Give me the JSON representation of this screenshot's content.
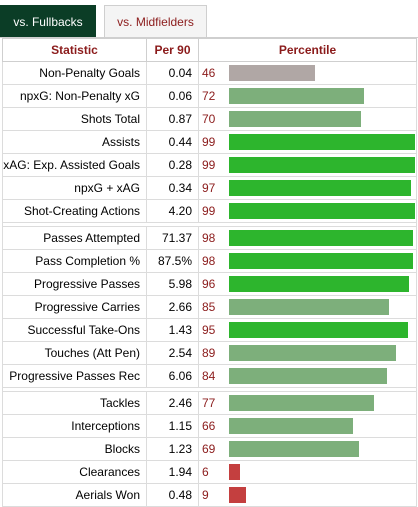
{
  "tabs": [
    {
      "label": "vs. Fullbacks",
      "active": true
    },
    {
      "label": "vs. Midfielders",
      "active": false
    }
  ],
  "table": {
    "headers": {
      "statistic": "Statistic",
      "per90": "Per 90",
      "percentile": "Percentile"
    },
    "groups": [
      [
        {
          "name": "Non-Penalty Goals",
          "per90": "0.04",
          "percentile": "46"
        },
        {
          "name": "npxG: Non-Penalty xG",
          "per90": "0.06",
          "percentile": "72"
        },
        {
          "name": "Shots Total",
          "per90": "0.87",
          "percentile": "70"
        },
        {
          "name": "Assists",
          "per90": "0.44",
          "percentile": "99"
        },
        {
          "name": "xAG: Exp. Assisted Goals",
          "per90": "0.28",
          "percentile": "99"
        },
        {
          "name": "npxG + xAG",
          "per90": "0.34",
          "percentile": "97"
        },
        {
          "name": "Shot-Creating Actions",
          "per90": "4.20",
          "percentile": "99"
        }
      ],
      [
        {
          "name": "Passes Attempted",
          "per90": "71.37",
          "percentile": "98"
        },
        {
          "name": "Pass Completion %",
          "per90": "87.5%",
          "percentile": "98"
        },
        {
          "name": "Progressive Passes",
          "per90": "5.98",
          "percentile": "96"
        },
        {
          "name": "Progressive Carries",
          "per90": "2.66",
          "percentile": "85"
        },
        {
          "name": "Successful Take-Ons",
          "per90": "1.43",
          "percentile": "95"
        },
        {
          "name": "Touches (Att Pen)",
          "per90": "2.54",
          "percentile": "89"
        },
        {
          "name": "Progressive Passes Rec",
          "per90": "6.06",
          "percentile": "84"
        }
      ],
      [
        {
          "name": "Tackles",
          "per90": "2.46",
          "percentile": "77"
        },
        {
          "name": "Interceptions",
          "per90": "1.15",
          "percentile": "66"
        },
        {
          "name": "Blocks",
          "per90": "1.23",
          "percentile": "69"
        },
        {
          "name": "Clearances",
          "per90": "1.94",
          "percentile": "6"
        },
        {
          "name": "Aerials Won",
          "per90": "0.48",
          "percentile": "9"
        }
      ]
    ]
  },
  "colors": {
    "high": "#2db52d",
    "mid": "#7daf7b",
    "average": "#b0a7a5",
    "low": "#c43f3f",
    "header_text": "#8b1b1b",
    "active_tab": "#0b3d26"
  }
}
